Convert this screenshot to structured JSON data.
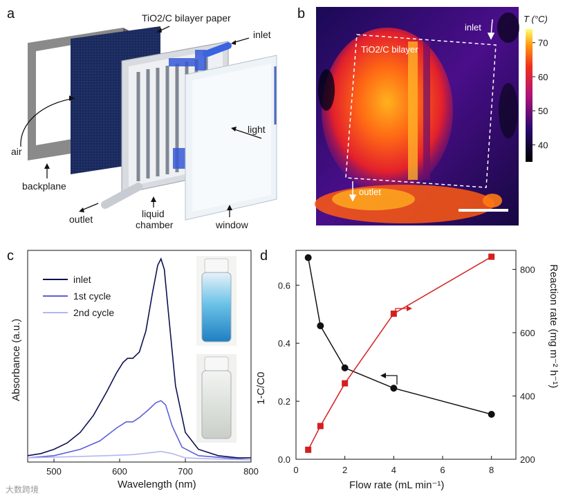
{
  "panel_a": {
    "letter": "a",
    "labels": {
      "paper": "TiO2/C bilayer paper",
      "inlet": "inlet",
      "light": "light",
      "air": "air",
      "backplane": "backplane",
      "outlet": "outlet",
      "liquid_chamber_1": "liquid",
      "liquid_chamber_2": "chamber",
      "window": "window"
    }
  },
  "panel_b": {
    "letter": "b",
    "colorbar_title": "T (°C)",
    "colorbar_ticks": [
      "70",
      "60",
      "50",
      "40"
    ],
    "inlet": "inlet",
    "outlet": "outlet",
    "region_label": "TiO2/C bilayer"
  },
  "watermark": "大数跨境",
  "chart_data": [
    {
      "type": "line",
      "panel": "c",
      "xlabel": "Wavelength (nm)",
      "ylabel": "Absorbance (a.u.)",
      "xlim": [
        460,
        800
      ],
      "ylim": [
        0,
        1
      ],
      "x_ticks": [
        "500",
        "600",
        "700",
        "800"
      ],
      "legend": [
        "inlet",
        "1st cycle",
        "2nd cycle"
      ],
      "legend_position": "top-left",
      "series": [
        {
          "name": "inlet",
          "color": "#0d0f52",
          "x": [
            460,
            480,
            500,
            520,
            540,
            560,
            580,
            595,
            605,
            612,
            620,
            630,
            640,
            650,
            658,
            663,
            668,
            675,
            685,
            700,
            720,
            750,
            780,
            800
          ],
          "y": [
            0.03,
            0.04,
            0.06,
            0.09,
            0.14,
            0.22,
            0.33,
            0.42,
            0.47,
            0.49,
            0.49,
            0.52,
            0.62,
            0.8,
            0.93,
            0.96,
            0.91,
            0.68,
            0.36,
            0.14,
            0.06,
            0.03,
            0.02,
            0.02
          ]
        },
        {
          "name": "1st cycle",
          "color": "#5b5fd6",
          "x": [
            460,
            500,
            540,
            570,
            595,
            610,
            620,
            630,
            645,
            655,
            663,
            670,
            680,
            695,
            720,
            760,
            800
          ],
          "y": [
            0.02,
            0.03,
            0.06,
            0.1,
            0.16,
            0.19,
            0.19,
            0.21,
            0.25,
            0.28,
            0.29,
            0.27,
            0.17,
            0.07,
            0.03,
            0.02,
            0.01
          ]
        },
        {
          "name": "2nd cycle",
          "color": "#b3b6f2",
          "x": [
            460,
            520,
            580,
            620,
            650,
            663,
            680,
            700,
            740,
            800
          ],
          "y": [
            0.02,
            0.025,
            0.03,
            0.035,
            0.045,
            0.05,
            0.04,
            0.02,
            0.015,
            0.01
          ]
        }
      ]
    },
    {
      "type": "line",
      "panel": "d",
      "xlabel": "Flow rate (mL min⁻¹)",
      "ylabel_left": "1-C/C0",
      "ylabel_right": "Reaction rate (mg m⁻² h⁻¹)",
      "xlim": [
        0,
        9
      ],
      "ylim_left": [
        0,
        0.72
      ],
      "ylim_right": [
        200,
        860
      ],
      "x_ticks": [
        "0",
        "2",
        "4",
        "6",
        "8"
      ],
      "y_ticks_left": [
        "0.0",
        "0.2",
        "0.4",
        "0.6"
      ],
      "y_ticks_right": [
        "200",
        "400",
        "600",
        "800"
      ],
      "series": [
        {
          "name": "1-C/C0",
          "axis": "left",
          "color": "#111111",
          "marker": "circle",
          "x": [
            0.5,
            1,
            2,
            4,
            8
          ],
          "y": [
            0.695,
            0.46,
            0.315,
            0.245,
            0.155
          ]
        },
        {
          "name": "Reaction rate",
          "axis": "right",
          "color": "#d41f1f",
          "marker": "square",
          "x": [
            0.5,
            1,
            2,
            4,
            8
          ],
          "y": [
            230,
            305,
            440,
            660,
            840
          ]
        }
      ]
    }
  ]
}
